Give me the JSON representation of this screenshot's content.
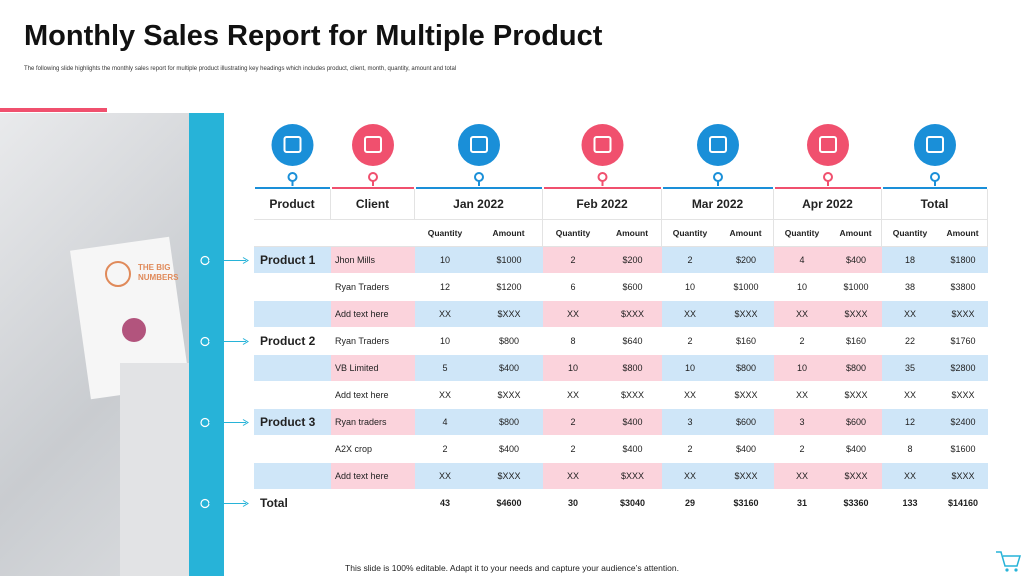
{
  "header": {
    "title": "Monthly Sales Report for Multiple Product",
    "subtitle": "The following slide highlights the monthly sales report for multiple product illustrating key headings which includes product, client, month, quantity, amount and total"
  },
  "image": {
    "text": [
      "THE BIG",
      "NUMBERS"
    ]
  },
  "table": {
    "columns": [
      "Product",
      "Client",
      "Jan 2022",
      "Feb 2022",
      "Mar 2022",
      "Apr 2022",
      "Total"
    ],
    "subheaders": [
      "Quantity",
      "Amount"
    ],
    "rows": [
      {
        "product": "Product 1",
        "client": "Jhon Mills",
        "cells": [
          "10",
          "$1000",
          "2",
          "$200",
          "2",
          "$200",
          "4",
          "$400",
          "18",
          "$1800"
        ]
      },
      {
        "client": "Ryan Traders",
        "cells": [
          "12",
          "$1200",
          "6",
          "$600",
          "10",
          "$1000",
          "10",
          "$1000",
          "38",
          "$3800"
        ]
      },
      {
        "client": "Add text here",
        "cells": [
          "XX",
          "$XXX",
          "XX",
          "$XXX",
          "XX",
          "$XXX",
          "XX",
          "$XXX",
          "XX",
          "$XXX"
        ]
      },
      {
        "product": "Product 2",
        "client": "Ryan Traders",
        "cells": [
          "10",
          "$800",
          "8",
          "$640",
          "2",
          "$160",
          "2",
          "$160",
          "22",
          "$1760"
        ]
      },
      {
        "client": "VB Limited",
        "cells": [
          "5",
          "$400",
          "10",
          "$800",
          "10",
          "$800",
          "10",
          "$800",
          "35",
          "$2800"
        ]
      },
      {
        "client": "Add text here",
        "cells": [
          "XX",
          "$XXX",
          "XX",
          "$XXX",
          "XX",
          "$XXX",
          "XX",
          "$XXX",
          "XX",
          "$XXX"
        ]
      },
      {
        "product": "Product 3",
        "client": "Ryan traders",
        "cells": [
          "4",
          "$800",
          "2",
          "$400",
          "3",
          "$600",
          "3",
          "$600",
          "12",
          "$2400"
        ]
      },
      {
        "client": "A2X crop",
        "cells": [
          "2",
          "$400",
          "2",
          "$400",
          "2",
          "$400",
          "2",
          "$400",
          "8",
          "$1600"
        ]
      },
      {
        "client": "Add text here",
        "cells": [
          "XX",
          "$XXX",
          "XX",
          "$XXX",
          "XX",
          "$XXX",
          "XX",
          "$XXX",
          "XX",
          "$XXX"
        ]
      },
      {
        "product": "Total",
        "cells": [
          "43",
          "$4600",
          "30",
          "$3040",
          "29",
          "$3160",
          "31",
          "$3360",
          "133",
          "$14160"
        ]
      }
    ]
  },
  "footer": "This slide is 100% editable. Adapt it to your needs and capture your audience’s attention."
}
